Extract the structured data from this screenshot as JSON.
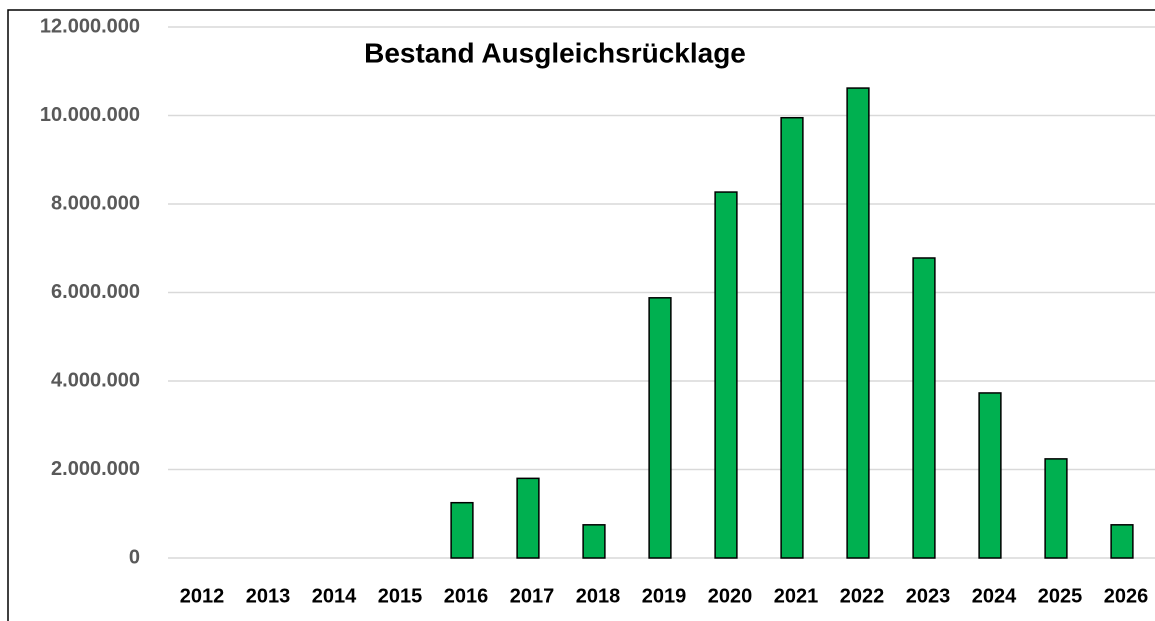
{
  "chart_data": {
    "type": "bar",
    "title": "Bestand Ausgleichsrücklage",
    "categories": [
      "2012",
      "2013",
      "2014",
      "2015",
      "2016",
      "2017",
      "2018",
      "2019",
      "2020",
      "2021",
      "2022",
      "2023",
      "2024",
      "2025",
      "2026"
    ],
    "values": [
      0,
      0,
      0,
      0,
      1250000,
      1800000,
      750000,
      5880000,
      8270000,
      9950000,
      10620000,
      6780000,
      3730000,
      2240000,
      750000
    ],
    "color": "#00b050",
    "ylim": [
      0,
      12000000
    ],
    "yticks": [
      0,
      {
        "value": 2000000,
        "label": "2.000.000"
      },
      {
        "value": 4000000,
        "label": "4.000.000"
      },
      {
        "value": 6000000,
        "label": "6.000.000"
      },
      {
        "value": 8000000,
        "label": "8.000.000"
      },
      {
        "value": 10000000,
        "label": "10.000.000"
      },
      {
        "value": 12000000,
        "label": "12.000.000"
      }
    ],
    "grid": true
  }
}
